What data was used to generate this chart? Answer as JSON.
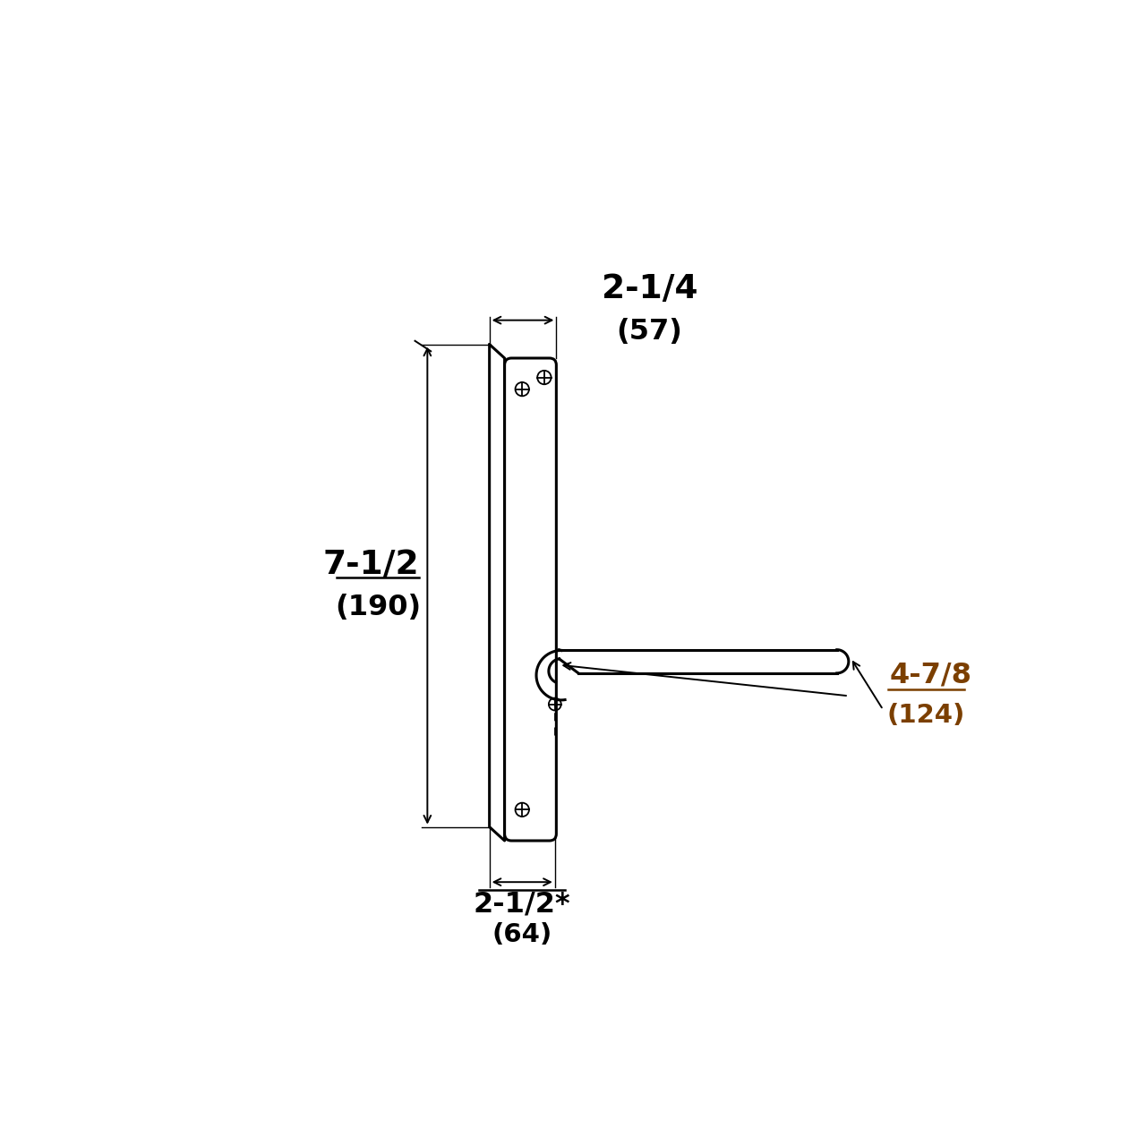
{
  "bg_color": "#ffffff",
  "line_color": "#000000",
  "dim_color_black": "#000000",
  "dim_color_orange": "#7B3F00",
  "fig_size": [
    12.8,
    12.8
  ],
  "dpi": 100,
  "dim_width": "2-1/4",
  "dim_width_mm": "(57)",
  "dim_height": "7-1/2",
  "dim_height_mm": "(190)",
  "dim_lever": "4-7/8",
  "dim_lever_mm": "(124)",
  "dim_backset": "2-1/2*",
  "dim_backset_mm": "(64)"
}
